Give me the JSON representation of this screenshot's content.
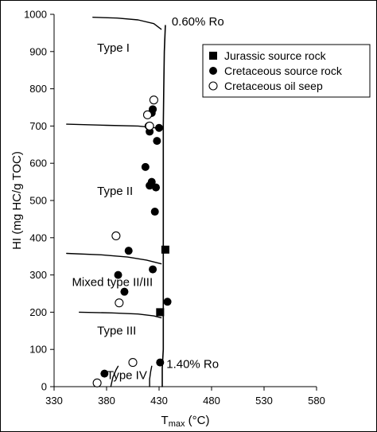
{
  "chart_data": {
    "type": "scatter",
    "xlabel_main": "T",
    "xlabel_sub": "max",
    "xlabel_unit": " (°C)",
    "ylabel": "HI (mg HC/g TOC)",
    "xlim": [
      330,
      580
    ],
    "ylim": [
      0,
      1000
    ],
    "x_ticks": [
      330,
      380,
      430,
      480,
      530,
      580
    ],
    "y_ticks": [
      0,
      100,
      200,
      300,
      400,
      500,
      600,
      700,
      800,
      900,
      1000
    ],
    "grid": false,
    "legend_position": "top-right",
    "legend": [
      {
        "marker": "square-filled",
        "label": "Jurassic source rock"
      },
      {
        "marker": "circle-filled",
        "label": "Cretaceous source rock"
      },
      {
        "marker": "circle-open",
        "label": "Cretaceous oil seep"
      }
    ],
    "series": [
      {
        "marker": "square-filled",
        "points": [
          [
            436,
            368
          ],
          [
            431,
            200
          ]
        ]
      },
      {
        "marker": "circle-filled",
        "points": [
          [
            424,
            745
          ],
          [
            423,
            735
          ],
          [
            420,
            700
          ],
          [
            430,
            695
          ],
          [
            421,
            685
          ],
          [
            428,
            660
          ],
          [
            417,
            590
          ],
          [
            423,
            550
          ],
          [
            421,
            540
          ],
          [
            427,
            535
          ],
          [
            426,
            470
          ],
          [
            401,
            365
          ],
          [
            424,
            315
          ],
          [
            391,
            300
          ],
          [
            397,
            255
          ],
          [
            438,
            228
          ],
          [
            431,
            65
          ],
          [
            378,
            35
          ]
        ]
      },
      {
        "marker": "circle-open",
        "points": [
          [
            425,
            770
          ],
          [
            419,
            730
          ],
          [
            421,
            700
          ],
          [
            389,
            405
          ],
          [
            392,
            225
          ],
          [
            405,
            65
          ],
          [
            371,
            10
          ]
        ]
      }
    ],
    "boundaries": [
      {
        "type": "ro",
        "points": [
          [
            433,
            0
          ],
          [
            433,
            50
          ],
          [
            434,
            100
          ],
          [
            434,
            200
          ],
          [
            434,
            300
          ],
          [
            434,
            400
          ],
          [
            434,
            500
          ],
          [
            434,
            600
          ],
          [
            434,
            700
          ],
          [
            434.5,
            800
          ],
          [
            435,
            900
          ],
          [
            436,
            970
          ]
        ]
      },
      {
        "type": "curve",
        "points": [
          [
            367,
            992
          ],
          [
            390,
            990
          ],
          [
            410,
            985
          ],
          [
            425,
            975
          ],
          [
            432,
            960
          ]
        ]
      },
      {
        "type": "curve",
        "points": [
          [
            342,
            705
          ],
          [
            380,
            702
          ],
          [
            410,
            700
          ],
          [
            425,
            696
          ],
          [
            432,
            690
          ]
        ]
      },
      {
        "type": "curve",
        "points": [
          [
            342,
            358
          ],
          [
            375,
            354
          ],
          [
            400,
            348
          ],
          [
            418,
            340
          ],
          [
            432,
            330
          ]
        ]
      },
      {
        "type": "curve",
        "points": [
          [
            354,
            200
          ],
          [
            385,
            198
          ],
          [
            410,
            195
          ],
          [
            425,
            190
          ],
          [
            432,
            185
          ]
        ]
      },
      {
        "type": "curve",
        "points": [
          [
            384,
            0
          ],
          [
            386,
            25
          ],
          [
            389,
            45
          ],
          [
            391,
            55
          ]
        ]
      },
      {
        "type": "curve",
        "points": [
          [
            421,
            0
          ],
          [
            421,
            20
          ],
          [
            422,
            40
          ],
          [
            423,
            55
          ]
        ]
      }
    ],
    "ro_labels": [
      {
        "text": "0.60% Ro",
        "x": 442,
        "y": 970
      },
      {
        "text": "1.40% Ro",
        "x": 437,
        "y": 50
      }
    ],
    "region_labels": [
      {
        "text": "Type I",
        "x": 371,
        "y": 900
      },
      {
        "text": "Type II",
        "x": 371,
        "y": 515
      },
      {
        "text": "Mixed type II/III",
        "x": 347,
        "y": 270
      },
      {
        "text": "Type III",
        "x": 371,
        "y": 140
      },
      {
        "text": "Type IV",
        "x": 380,
        "y": 20
      }
    ],
    "colors": {
      "axis": "#000000",
      "marker": "#000000",
      "background": "#ffffff"
    }
  }
}
